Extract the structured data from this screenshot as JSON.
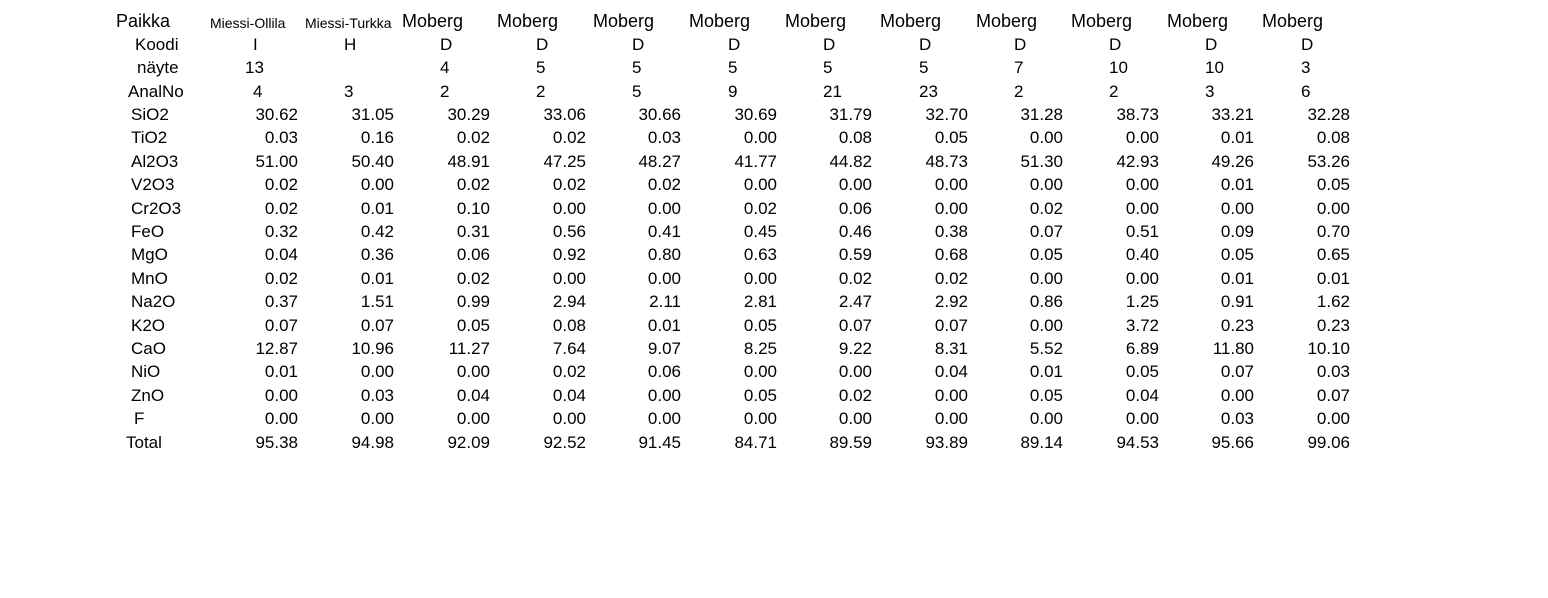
{
  "header": {
    "Paikka": [
      "Miessi-Ollila",
      "Miessi-Turkka",
      "Moberg",
      "Moberg",
      "Moberg",
      "Moberg",
      "Moberg",
      "Moberg",
      "Moberg",
      "Moberg",
      "Moberg",
      "Moberg"
    ],
    "Koodi": [
      "I",
      "H",
      "D",
      "D",
      "D",
      "D",
      "D",
      "D",
      "D",
      "D",
      "D",
      "D"
    ],
    "näyte": [
      "13",
      "",
      "4",
      "5",
      "5",
      "5",
      "5",
      "5",
      "7",
      "10",
      "10",
      "3"
    ],
    "AnalNo": [
      "4",
      "3",
      "2",
      "2",
      "5",
      "9",
      "21",
      "23",
      "2",
      "2",
      "3",
      "6"
    ]
  },
  "row_labels": [
    "Paikka",
    "Koodi",
    "näyte",
    "AnalNo",
    "SiO2",
    "TiO2",
    "Al2O3",
    "V2O3",
    "Cr2O3",
    "FeO",
    "MgO",
    "MnO",
    "Na2O",
    "K2O",
    "CaO",
    "NiO",
    "ZnO",
    "F",
    "Total"
  ],
  "rows": [
    {
      "label": "SiO2",
      "values": [
        "30.62",
        "31.05",
        "30.29",
        "33.06",
        "30.66",
        "30.69",
        "31.79",
        "32.70",
        "31.28",
        "38.73",
        "33.21",
        "32.28"
      ]
    },
    {
      "label": "TiO2",
      "values": [
        "0.03",
        "0.16",
        "0.02",
        "0.02",
        "0.03",
        "0.00",
        "0.08",
        "0.05",
        "0.00",
        "0.00",
        "0.01",
        "0.08"
      ]
    },
    {
      "label": "Al2O3",
      "values": [
        "51.00",
        "50.40",
        "48.91",
        "47.25",
        "48.27",
        "41.77",
        "44.82",
        "48.73",
        "51.30",
        "42.93",
        "49.26",
        "53.26"
      ]
    },
    {
      "label": "V2O3",
      "values": [
        "0.02",
        "0.00",
        "0.02",
        "0.02",
        "0.02",
        "0.00",
        "0.00",
        "0.00",
        "0.00",
        "0.00",
        "0.01",
        "0.05"
      ]
    },
    {
      "label": "Cr2O3",
      "values": [
        "0.02",
        "0.01",
        "0.10",
        "0.00",
        "0.00",
        "0.02",
        "0.06",
        "0.00",
        "0.02",
        "0.00",
        "0.00",
        "0.00"
      ]
    },
    {
      "label": "FeO",
      "values": [
        "0.32",
        "0.42",
        "0.31",
        "0.56",
        "0.41",
        "0.45",
        "0.46",
        "0.38",
        "0.07",
        "0.51",
        "0.09",
        "0.70"
      ]
    },
    {
      "label": "MgO",
      "values": [
        "0.04",
        "0.36",
        "0.06",
        "0.92",
        "0.80",
        "0.63",
        "0.59",
        "0.68",
        "0.05",
        "0.40",
        "0.05",
        "0.65"
      ]
    },
    {
      "label": "MnO",
      "values": [
        "0.02",
        "0.01",
        "0.02",
        "0.00",
        "0.00",
        "0.00",
        "0.02",
        "0.02",
        "0.00",
        "0.00",
        "0.01",
        "0.01"
      ]
    },
    {
      "label": "Na2O",
      "values": [
        "0.37",
        "1.51",
        "0.99",
        "2.94",
        "2.11",
        "2.81",
        "2.47",
        "2.92",
        "0.86",
        "1.25",
        "0.91",
        "1.62"
      ]
    },
    {
      "label": "K2O",
      "values": [
        "0.07",
        "0.07",
        "0.05",
        "0.08",
        "0.01",
        "0.05",
        "0.07",
        "0.07",
        "0.00",
        "3.72",
        "0.23",
        "0.23"
      ]
    },
    {
      "label": "CaO",
      "values": [
        "12.87",
        "10.96",
        "11.27",
        "7.64",
        "9.07",
        "8.25",
        "9.22",
        "8.31",
        "5.52",
        "6.89",
        "11.80",
        "10.10"
      ]
    },
    {
      "label": "NiO",
      "values": [
        "0.01",
        "0.00",
        "0.00",
        "0.02",
        "0.06",
        "0.00",
        "0.00",
        "0.04",
        "0.01",
        "0.05",
        "0.07",
        "0.03"
      ]
    },
    {
      "label": "ZnO",
      "values": [
        "0.00",
        "0.03",
        "0.04",
        "0.04",
        "0.00",
        "0.05",
        "0.02",
        "0.00",
        "0.05",
        "0.04",
        "0.00",
        "0.07"
      ]
    },
    {
      "label": "F",
      "values": [
        "0.00",
        "0.00",
        "0.00",
        "0.00",
        "0.00",
        "0.00",
        "0.00",
        "0.00",
        "0.00",
        "0.00",
        "0.03",
        "0.00"
      ]
    },
    {
      "label": "Total",
      "values": [
        "95.38",
        "94.98",
        "92.09",
        "92.52",
        "91.45",
        "84.71",
        "89.59",
        "93.89",
        "89.14",
        "94.53",
        "95.66",
        "99.06"
      ]
    }
  ]
}
